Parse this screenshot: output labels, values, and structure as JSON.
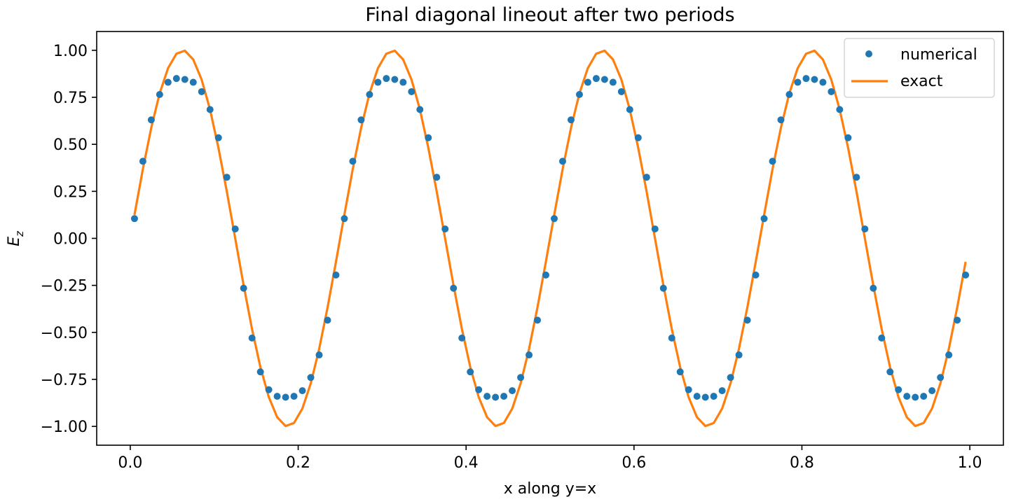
{
  "chart_data": {
    "type": "line",
    "title": "Final diagonal lineout after two periods",
    "xlabel": "x along y=x",
    "ylabel_base": "E",
    "ylabel_sub": "z",
    "xlim": [
      -0.04,
      1.04
    ],
    "ylim": [
      -1.1,
      1.1
    ],
    "xticks": [
      0.0,
      0.2,
      0.4,
      0.6,
      0.8,
      1.0
    ],
    "xtick_labels": [
      "0.0",
      "0.2",
      "0.4",
      "0.6",
      "0.8",
      "1.0"
    ],
    "yticks": [
      1.0,
      0.75,
      0.5,
      0.25,
      0.0,
      -0.25,
      -0.5,
      -0.75,
      -1.0
    ],
    "ytick_labels": [
      "1.00",
      "0.75",
      "0.50",
      "0.25",
      "0.00",
      "−0.25",
      "−0.50",
      "−0.75",
      "−1.00"
    ],
    "grid": false,
    "legend_position": "top-right",
    "series": [
      {
        "name": "numerical",
        "style": "markers",
        "color": "#1f77b4",
        "x": [
          0.005,
          0.015,
          0.025,
          0.035,
          0.045,
          0.055,
          0.065,
          0.075,
          0.085,
          0.095,
          0.105,
          0.115,
          0.125,
          0.135,
          0.145,
          0.155,
          0.165,
          0.175,
          0.185,
          0.195,
          0.205,
          0.215,
          0.225,
          0.235,
          0.245,
          0.255,
          0.265,
          0.275,
          0.285,
          0.295,
          0.305,
          0.315,
          0.325,
          0.335,
          0.345,
          0.355,
          0.365,
          0.375,
          0.385,
          0.395,
          0.405,
          0.415,
          0.425,
          0.435,
          0.445,
          0.455,
          0.465,
          0.475,
          0.485,
          0.495,
          0.505,
          0.515,
          0.525,
          0.535,
          0.545,
          0.555,
          0.565,
          0.575,
          0.585,
          0.595,
          0.605,
          0.615,
          0.625,
          0.635,
          0.645,
          0.655,
          0.665,
          0.675,
          0.685,
          0.695,
          0.705,
          0.715,
          0.725,
          0.735,
          0.745,
          0.755,
          0.765,
          0.775,
          0.785,
          0.795,
          0.805,
          0.815,
          0.825,
          0.835,
          0.845,
          0.855,
          0.865,
          0.875,
          0.885,
          0.895,
          0.905,
          0.915,
          0.925,
          0.935,
          0.945,
          0.955,
          0.965,
          0.975,
          0.985,
          0.995
        ],
        "y": [
          0.105,
          0.41,
          0.63,
          0.765,
          0.83,
          0.85,
          0.845,
          0.83,
          0.78,
          0.685,
          0.535,
          0.325,
          0.05,
          -0.265,
          -0.53,
          -0.71,
          -0.805,
          -0.84,
          -0.845,
          -0.84,
          -0.81,
          -0.74,
          -0.62,
          -0.435,
          -0.195,
          0.105,
          0.41,
          0.63,
          0.765,
          0.83,
          0.85,
          0.845,
          0.83,
          0.78,
          0.685,
          0.535,
          0.325,
          0.05,
          -0.265,
          -0.53,
          -0.71,
          -0.805,
          -0.84,
          -0.845,
          -0.84,
          -0.81,
          -0.74,
          -0.62,
          -0.435,
          -0.195,
          0.105,
          0.41,
          0.63,
          0.765,
          0.83,
          0.85,
          0.845,
          0.83,
          0.78,
          0.685,
          0.535,
          0.325,
          0.05,
          -0.265,
          -0.53,
          -0.71,
          -0.805,
          -0.84,
          -0.845,
          -0.84,
          -0.81,
          -0.74,
          -0.62,
          -0.435,
          -0.195,
          0.105,
          0.41,
          0.63,
          0.765,
          0.83,
          0.85,
          0.845,
          0.83,
          0.78,
          0.685,
          0.535,
          0.325,
          0.05,
          -0.265,
          -0.53,
          -0.71,
          -0.805,
          -0.84,
          -0.845,
          -0.84,
          -0.81,
          -0.74,
          -0.62,
          -0.435,
          -0.195
        ]
      },
      {
        "name": "exact",
        "style": "line",
        "color": "#ff7f0e",
        "x": [
          0.005,
          0.015,
          0.025,
          0.035,
          0.045,
          0.055,
          0.065,
          0.075,
          0.085,
          0.095,
          0.105,
          0.115,
          0.125,
          0.135,
          0.145,
          0.155,
          0.165,
          0.175,
          0.185,
          0.195,
          0.205,
          0.215,
          0.225,
          0.235,
          0.245,
          0.255,
          0.265,
          0.275,
          0.285,
          0.295,
          0.305,
          0.315,
          0.325,
          0.335,
          0.345,
          0.355,
          0.365,
          0.375,
          0.385,
          0.395,
          0.405,
          0.415,
          0.425,
          0.435,
          0.445,
          0.455,
          0.465,
          0.475,
          0.485,
          0.495,
          0.505,
          0.515,
          0.525,
          0.535,
          0.545,
          0.555,
          0.565,
          0.575,
          0.585,
          0.595,
          0.605,
          0.615,
          0.625,
          0.635,
          0.645,
          0.655,
          0.665,
          0.675,
          0.685,
          0.695,
          0.705,
          0.715,
          0.725,
          0.735,
          0.745,
          0.755,
          0.765,
          0.775,
          0.785,
          0.795,
          0.805,
          0.815,
          0.825,
          0.835,
          0.845,
          0.855,
          0.865,
          0.875,
          0.885,
          0.895,
          0.905,
          0.915,
          0.925,
          0.935,
          0.945,
          0.955,
          0.965,
          0.975,
          0.985,
          0.995
        ],
        "y": [
          0.125,
          0.368,
          0.588,
          0.771,
          0.905,
          0.982,
          0.998,
          0.951,
          0.844,
          0.685,
          0.482,
          0.249,
          0.0,
          -0.249,
          -0.482,
          -0.685,
          -0.844,
          -0.951,
          -0.998,
          -0.982,
          -0.905,
          -0.771,
          -0.588,
          -0.368,
          -0.125,
          0.125,
          0.368,
          0.588,
          0.771,
          0.905,
          0.982,
          0.998,
          0.951,
          0.844,
          0.685,
          0.482,
          0.249,
          0.0,
          -0.249,
          -0.482,
          -0.685,
          -0.844,
          -0.951,
          -0.998,
          -0.982,
          -0.905,
          -0.771,
          -0.588,
          -0.368,
          -0.125,
          0.125,
          0.368,
          0.588,
          0.771,
          0.905,
          0.982,
          0.998,
          0.951,
          0.844,
          0.685,
          0.482,
          0.249,
          0.0,
          -0.249,
          -0.482,
          -0.685,
          -0.844,
          -0.951,
          -0.998,
          -0.982,
          -0.905,
          -0.771,
          -0.588,
          -0.368,
          -0.125,
          0.125,
          0.368,
          0.588,
          0.771,
          0.905,
          0.982,
          0.998,
          0.951,
          0.844,
          0.685,
          0.482,
          0.249,
          0.0,
          -0.249,
          -0.482,
          -0.685,
          -0.844,
          -0.951,
          -0.998,
          -0.982,
          -0.905,
          -0.771,
          -0.588,
          -0.368,
          -0.125
        ]
      }
    ]
  }
}
